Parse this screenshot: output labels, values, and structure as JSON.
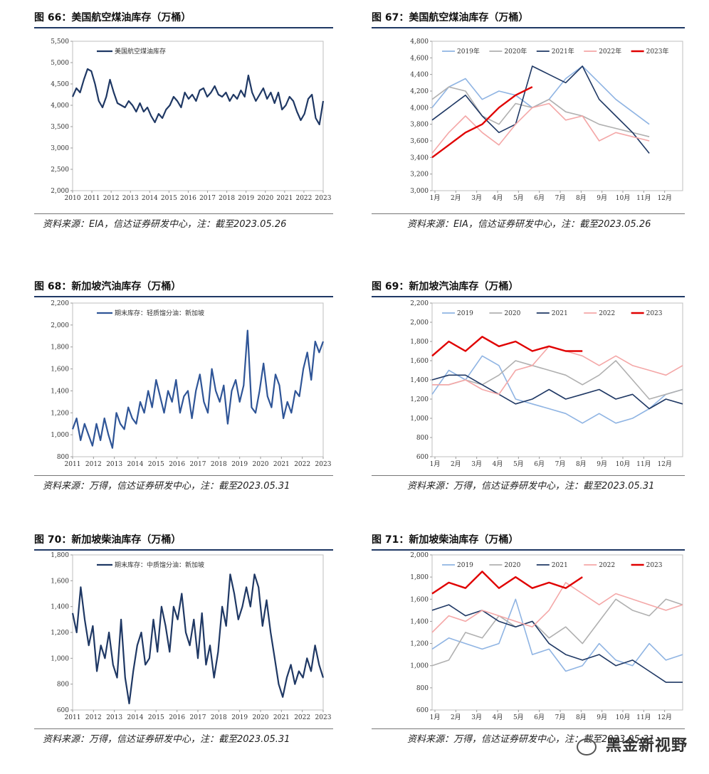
{
  "panels": [
    {
      "title": "图 66：美国航空煤油库存（万桶）",
      "source": "资料来源：EIA，信达证券研发中心，注：截至2023.05.26",
      "chart_data": {
        "type": "line",
        "xlabel": "",
        "ylabel": "",
        "ylim": [
          2000,
          5500
        ],
        "yticks": [
          "2,000",
          "2,500",
          "3,000",
          "3,500",
          "4,000",
          "4,500",
          "5,000",
          "5,500"
        ],
        "xticks": [
          "2010",
          "2011",
          "2012",
          "2013",
          "2014",
          "2015",
          "2016",
          "2017",
          "2018",
          "2019",
          "2020",
          "2021",
          "2022",
          "2023"
        ],
        "series": [
          {
            "name": "美国航空煤油库存",
            "color": "#1f3864",
            "x_years": [
              2010.0,
              2010.2,
              2010.4,
              2010.6,
              2010.8,
              2011.0,
              2011.2,
              2011.4,
              2011.6,
              2011.8,
              2012.0,
              2012.2,
              2012.4,
              2012.6,
              2012.8,
              2013.0,
              2013.2,
              2013.4,
              2013.6,
              2013.8,
              2014.0,
              2014.2,
              2014.4,
              2014.6,
              2014.8,
              2015.0,
              2015.2,
              2015.4,
              2015.6,
              2015.8,
              2016.0,
              2016.2,
              2016.4,
              2016.6,
              2016.8,
              2017.0,
              2017.2,
              2017.4,
              2017.6,
              2017.8,
              2018.0,
              2018.2,
              2018.4,
              2018.6,
              2018.8,
              2019.0,
              2019.2,
              2019.4,
              2019.6,
              2019.8,
              2020.0,
              2020.2,
              2020.4,
              2020.6,
              2020.8,
              2021.0,
              2021.2,
              2021.4,
              2021.6,
              2021.8,
              2022.0,
              2022.2,
              2022.4,
              2022.6,
              2022.8,
              2023.0,
              2023.2,
              2023.4
            ],
            "values": [
              4200,
              4400,
              4300,
              4600,
              4850,
              4800,
              4500,
              4100,
              3950,
              4200,
              4600,
              4300,
              4050,
              4000,
              3950,
              4100,
              4000,
              3850,
              4050,
              3850,
              3950,
              3750,
              3600,
              3800,
              3700,
              3900,
              4000,
              4200,
              4100,
              3950,
              4300,
              4150,
              4250,
              4100,
              4350,
              4400,
              4200,
              4300,
              4450,
              4250,
              4200,
              4300,
              4100,
              4250,
              4150,
              4350,
              4200,
              4700,
              4300,
              4100,
              4250,
              4400,
              4150,
              4300,
              4050,
              4300,
              3900,
              4000,
              4200,
              4100,
              3850,
              3650,
              3800,
              4150,
              4250,
              3700,
              3550,
              4100
            ]
          }
        ]
      }
    },
    {
      "title": "图 67：美国航空煤油库存（万桶）",
      "source": "资料来源：EIA，信达证券研发中心，注：截至2023.05.26",
      "chart_data": {
        "type": "line",
        "ylim": [
          3000,
          4800
        ],
        "yticks": [
          "3,000",
          "3,200",
          "3,400",
          "3,600",
          "3,800",
          "4,000",
          "4,200",
          "4,400",
          "4,600",
          "4,800"
        ],
        "xticks": [
          "1月",
          "2月",
          "3月",
          "4月",
          "5月",
          "6月",
          "7月",
          "8月",
          "9月",
          "10月",
          "11月",
          "12月"
        ],
        "legend": "top",
        "series": [
          {
            "name": "2019年",
            "color": "#8fb4e3",
            "values": [
              4000,
              4250,
              4350,
              4100,
              4200,
              4150,
              4000,
              4100,
              4350,
              4500,
              4300,
              4100,
              3950,
              3800
            ]
          },
          {
            "name": "2020年",
            "color": "#b0b0b0",
            "values": [
              4100,
              4250,
              4200,
              3900,
              3800,
              4050,
              4000,
              4100,
              3950,
              3900,
              3800,
              3750,
              3700,
              3650
            ]
          },
          {
            "name": "2021年",
            "color": "#1f3864",
            "values": [
              3850,
              4000,
              4150,
              3900,
              3700,
              3800,
              4500,
              4400,
              4300,
              4500,
              4100,
              3900,
              3700,
              3450
            ]
          },
          {
            "name": "2022年",
            "color": "#f4a7a7",
            "values": [
              3450,
              3700,
              3900,
              3700,
              3550,
              3800,
              4000,
              4050,
              3850,
              3900,
              3600,
              3700,
              3650,
              3600
            ]
          },
          {
            "name": "2023年",
            "color": "#e00000",
            "values": [
              3400,
              3550,
              3700,
              3800,
              4000,
              4150,
              4250
            ]
          }
        ]
      }
    },
    {
      "title": "图 68：新加坡汽油库存（万桶）",
      "source": "资料来源：万得，信达证券研发中心，注：截至2023.05.31",
      "chart_data": {
        "type": "line",
        "ylim": [
          800,
          2200
        ],
        "yticks": [
          "800",
          "1,000",
          "1,200",
          "1,400",
          "1,600",
          "1,800",
          "2,000",
          "2,200"
        ],
        "xticks": [
          "2011",
          "2012",
          "2013",
          "2014",
          "2015",
          "2016",
          "2017",
          "2018",
          "2019",
          "2020",
          "2021",
          "2022",
          "2023"
        ],
        "series": [
          {
            "name": "期末库存：轻质馏分油：新加坡",
            "color": "#2f5597",
            "values": [
              1050,
              1150,
              950,
              1100,
              1000,
              900,
              1100,
              950,
              1150,
              1000,
              880,
              1200,
              1100,
              1050,
              1250,
              1150,
              1100,
              1300,
              1200,
              1400,
              1250,
              1500,
              1350,
              1200,
              1400,
              1300,
              1500,
              1200,
              1350,
              1400,
              1150,
              1400,
              1550,
              1300,
              1200,
              1600,
              1400,
              1300,
              1450,
              1100,
              1400,
              1500,
              1300,
              1450,
              1950,
              1250,
              1200,
              1400,
              1650,
              1350,
              1250,
              1550,
              1450,
              1150,
              1300,
              1200,
              1400,
              1350,
              1600,
              1750,
              1500,
              1850,
              1750,
              1850
            ]
          }
        ]
      }
    },
    {
      "title": "图 69：新加坡汽油库存（万桶）",
      "source": "资料来源：万得，信达证券研发中心，注：截至2023.05.31",
      "chart_data": {
        "type": "line",
        "ylim": [
          600,
          2200
        ],
        "yticks": [
          "600",
          "800",
          "1,000",
          "1,200",
          "1,400",
          "1,600",
          "1,800",
          "2,000",
          "2,200"
        ],
        "xticks": [
          "1月",
          "2月",
          "3月",
          "4月",
          "5月",
          "6月",
          "7月",
          "8月",
          "9月",
          "10月",
          "11月",
          "12月"
        ],
        "legend": "top",
        "series": [
          {
            "name": "2019",
            "color": "#8fb4e3",
            "values": [
              1250,
              1500,
              1400,
              1650,
              1550,
              1200,
              1150,
              1100,
              1050,
              950,
              1050,
              950,
              1000,
              1100,
              1250,
              1300
            ]
          },
          {
            "name": "2020",
            "color": "#b0b0b0",
            "values": [
              1350,
              1350,
              1400,
              1350,
              1450,
              1600,
              1550,
              1500,
              1450,
              1350,
              1450,
              1600,
              1400,
              1200,
              1250,
              1300
            ]
          },
          {
            "name": "2021",
            "color": "#1f3864",
            "values": [
              1400,
              1450,
              1450,
              1350,
              1250,
              1150,
              1200,
              1300,
              1200,
              1250,
              1300,
              1200,
              1250,
              1100,
              1200,
              1150
            ]
          },
          {
            "name": "2022",
            "color": "#f4a7a7",
            "values": [
              1350,
              1350,
              1400,
              1300,
              1250,
              1500,
              1550,
              1750,
              1700,
              1650,
              1550,
              1650,
              1550,
              1500,
              1450,
              1550
            ]
          },
          {
            "name": "2023",
            "color": "#e00000",
            "values": [
              1650,
              1800,
              1700,
              1850,
              1750,
              1800,
              1700,
              1750,
              1700,
              1700
            ]
          }
        ]
      }
    },
    {
      "title": "图 70：新加坡柴油库存（万桶）",
      "source": "资料来源：万得，信达证券研发中心，注：截至2023.05.31",
      "chart_data": {
        "type": "line",
        "ylim": [
          600,
          1800
        ],
        "yticks": [
          "600",
          "800",
          "1,000",
          "1,200",
          "1,400",
          "1,600",
          "1,800"
        ],
        "xticks": [
          "2011",
          "2012",
          "2013",
          "2014",
          "2015",
          "2016",
          "2017",
          "2018",
          "2019",
          "2020",
          "2021",
          "2022",
          "2023"
        ],
        "series": [
          {
            "name": "期末库存：中质馏分油：新加坡",
            "color": "#1f3864",
            "values": [
              1350,
              1200,
              1550,
              1300,
              1100,
              1250,
              900,
              1100,
              1000,
              1200,
              950,
              850,
              1300,
              850,
              650,
              900,
              1100,
              1200,
              950,
              1000,
              1300,
              1050,
              1400,
              1250,
              1050,
              1400,
              1300,
              1500,
              1200,
              1100,
              1300,
              1000,
              1350,
              950,
              1100,
              850,
              1050,
              1400,
              1250,
              1650,
              1500,
              1300,
              1400,
              1550,
              1400,
              1650,
              1550,
              1250,
              1450,
              1200,
              1000,
              800,
              700,
              850,
              950,
              800,
              900,
              850,
              1000,
              900,
              1100,
              950,
              850
            ]
          }
        ]
      }
    },
    {
      "title": "图 71：新加坡柴油库存（万桶）",
      "source": "资料来源：万得，信达证券研发中心，注：截至2023.05.31",
      "chart_data": {
        "type": "line",
        "ylim": [
          600,
          2000
        ],
        "yticks": [
          "600",
          "800",
          "1,000",
          "1,200",
          "1,400",
          "1,600",
          "1,800",
          "2,000"
        ],
        "xticks": [
          "1月",
          "2月",
          "3月",
          "4月",
          "5月",
          "6月",
          "7月",
          "8月",
          "9月",
          "10月",
          "11月",
          "12月"
        ],
        "legend": "top",
        "series": [
          {
            "name": "2019",
            "color": "#8fb4e3",
            "values": [
              1150,
              1250,
              1200,
              1150,
              1200,
              1600,
              1100,
              1150,
              950,
              1000,
              1200,
              1050,
              1000,
              1200,
              1050,
              1100
            ]
          },
          {
            "name": "2020",
            "color": "#b0b0b0",
            "values": [
              1000,
              1050,
              1300,
              1250,
              1450,
              1350,
              1400,
              1250,
              1350,
              1200,
              1400,
              1600,
              1500,
              1450,
              1600,
              1550
            ]
          },
          {
            "name": "2021",
            "color": "#1f3864",
            "values": [
              1500,
              1550,
              1450,
              1500,
              1400,
              1350,
              1400,
              1200,
              1100,
              1050,
              1100,
              1000,
              1050,
              950,
              850,
              850
            ]
          },
          {
            "name": "2022",
            "color": "#f4a7a7",
            "values": [
              1300,
              1450,
              1400,
              1500,
              1450,
              1400,
              1350,
              1500,
              1750,
              1650,
              1550,
              1650,
              1600,
              1550,
              1500,
              1550
            ]
          },
          {
            "name": "2023",
            "color": "#e00000",
            "values": [
              1650,
              1750,
              1700,
              1850,
              1700,
              1800,
              1700,
              1750,
              1700,
              1800
            ]
          }
        ]
      }
    }
  ],
  "watermark": "黑金新视野"
}
